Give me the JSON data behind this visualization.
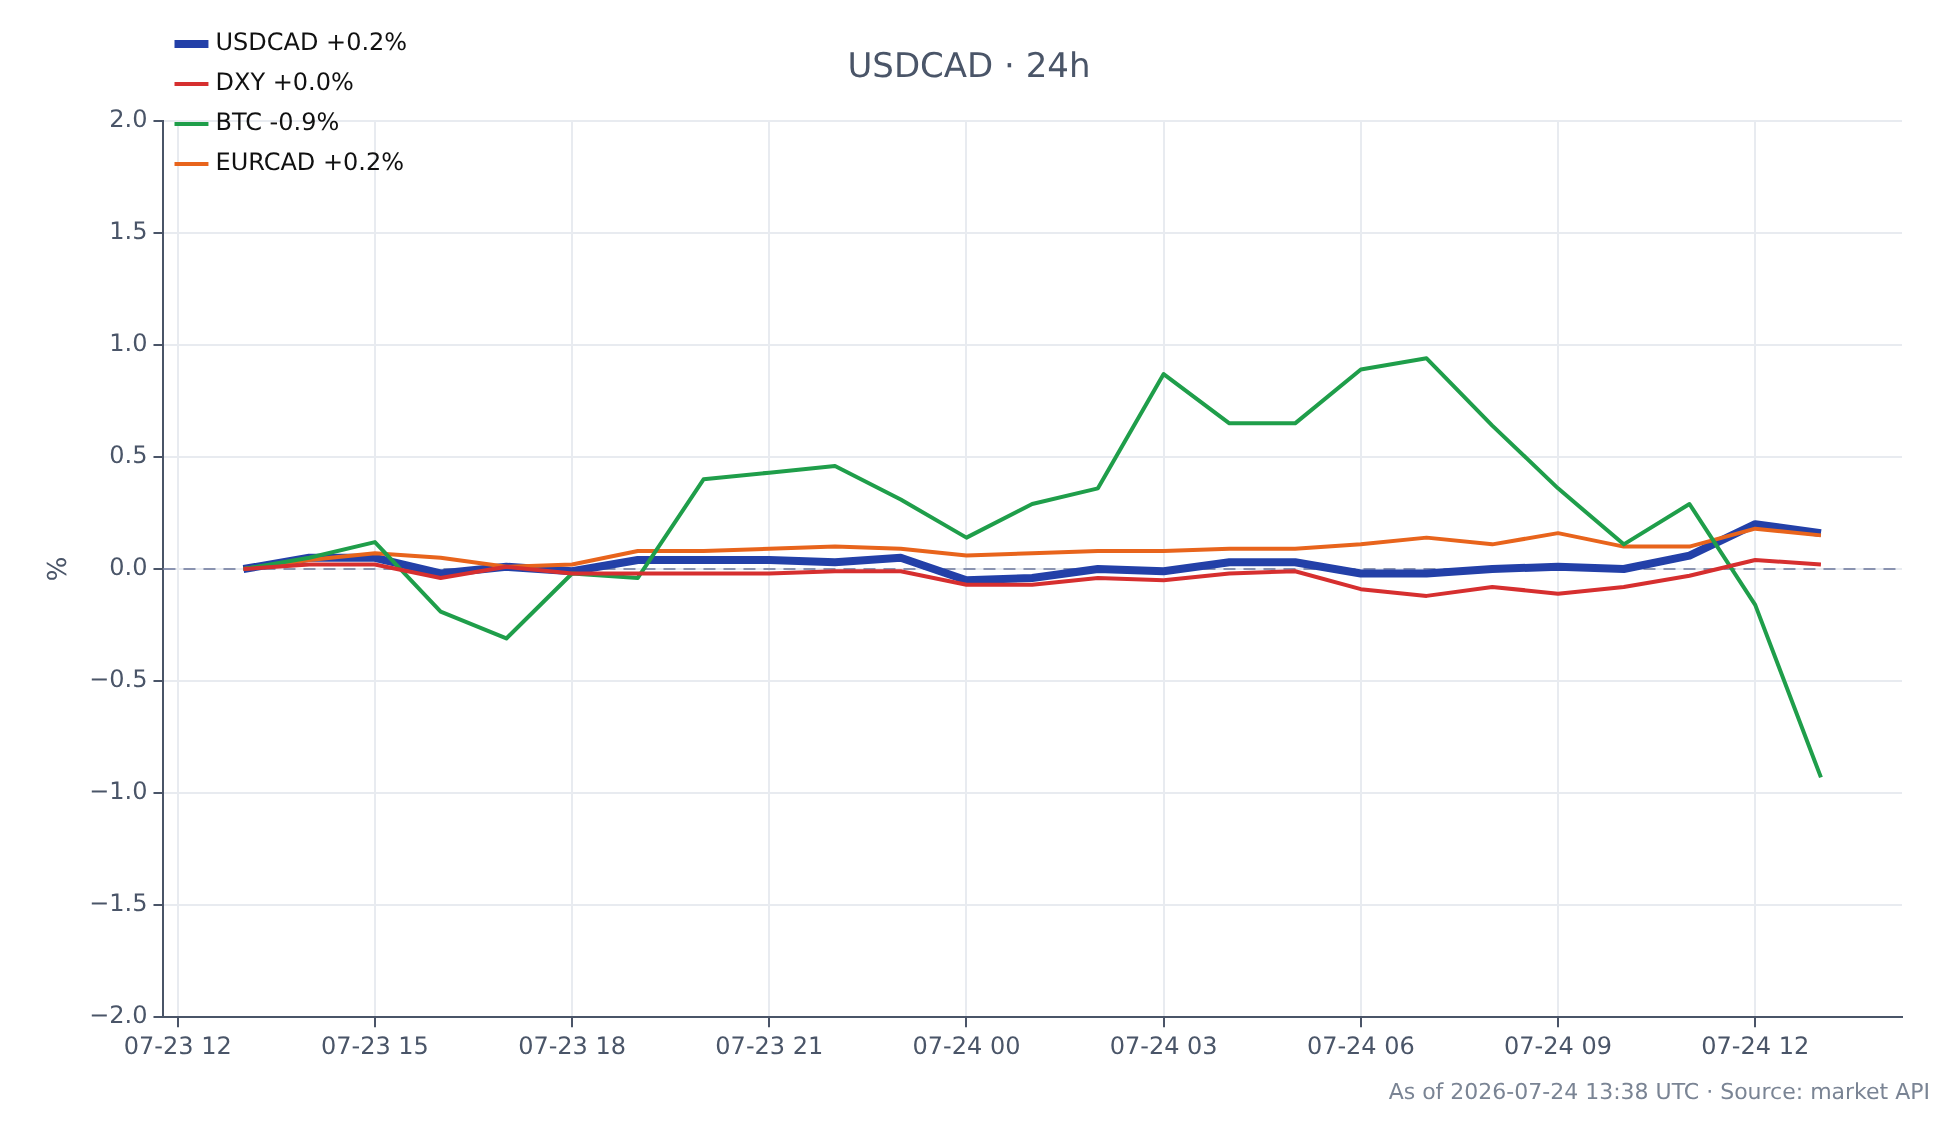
{
  "chart_data": {
    "type": "line",
    "title": "USDCAD · 24h",
    "ylabel": "%",
    "x": [
      "2026-07-23T13:00",
      "2026-07-23T14:00",
      "2026-07-23T15:00",
      "2026-07-23T16:00",
      "2026-07-23T17:00",
      "2026-07-23T18:00",
      "2026-07-23T19:00",
      "2026-07-23T20:00",
      "2026-07-23T21:00",
      "2026-07-23T22:00",
      "2026-07-23T23:00",
      "2026-07-24T00:00",
      "2026-07-24T01:00",
      "2026-07-24T02:00",
      "2026-07-24T03:00",
      "2026-07-24T04:00",
      "2026-07-24T05:00",
      "2026-07-24T06:00",
      "2026-07-24T07:00",
      "2026-07-24T08:00",
      "2026-07-24T09:00",
      "2026-07-24T10:00",
      "2026-07-24T11:00",
      "2026-07-24T12:00",
      "2026-07-24T13:00"
    ],
    "series": [
      {
        "name": "USDCAD +0.2%",
        "color": "#2340a8",
        "values": [
          0,
          0.05,
          0.05,
          -0.02,
          0.01,
          -0.01,
          0.04,
          0.04,
          0.04,
          0.03,
          0.05,
          -0.05,
          -0.04,
          0.0,
          -0.01,
          0.03,
          0.03,
          -0.02,
          -0.02,
          0.0,
          0.01,
          0.0,
          0.06,
          0.2,
          0.16
        ]
      },
      {
        "name": "DXY +0.0%",
        "color": "#d62f2f",
        "values": [
          0,
          0.02,
          0.02,
          -0.04,
          0.01,
          -0.02,
          -0.02,
          -0.02,
          -0.02,
          -0.01,
          -0.01,
          -0.07,
          -0.07,
          -0.04,
          -0.05,
          -0.02,
          -0.01,
          -0.09,
          -0.12,
          -0.08,
          -0.11,
          -0.08,
          -0.03,
          0.04,
          0.02
        ]
      },
      {
        "name": "BTC -0.9%",
        "color": "#1f9e4a",
        "values": [
          0,
          0.05,
          0.12,
          -0.19,
          -0.31,
          -0.02,
          -0.04,
          0.4,
          0.43,
          0.46,
          0.31,
          0.14,
          0.29,
          0.36,
          0.87,
          0.65,
          0.65,
          0.89,
          0.94,
          0.64,
          0.36,
          0.11,
          0.29,
          -0.16,
          -0.93
        ]
      },
      {
        "name": "EURCAD +0.2%",
        "color": "#e8641c",
        "values": [
          0,
          0.04,
          0.07,
          0.05,
          0.01,
          0.02,
          0.08,
          0.08,
          0.09,
          0.1,
          0.09,
          0.06,
          0.07,
          0.08,
          0.08,
          0.09,
          0.09,
          0.11,
          0.14,
          0.11,
          0.16,
          0.1,
          0.1,
          0.18,
          0.15
        ]
      }
    ],
    "xlim": [
      "2026-07-23T11:47",
      "2026-07-24T14:14"
    ],
    "xticks": [
      {
        "value": "2026-07-23T12:00",
        "label": "07-23 12"
      },
      {
        "value": "2026-07-23T15:00",
        "label": "07-23 15"
      },
      {
        "value": "2026-07-23T18:00",
        "label": "07-23 18"
      },
      {
        "value": "2026-07-23T21:00",
        "label": "07-23 21"
      },
      {
        "value": "2026-07-24T00:00",
        "label": "07-24 00"
      },
      {
        "value": "2026-07-24T03:00",
        "label": "07-24 03"
      },
      {
        "value": "2026-07-24T06:00",
        "label": "07-24 06"
      },
      {
        "value": "2026-07-24T09:00",
        "label": "07-24 09"
      },
      {
        "value": "2026-07-24T12:00",
        "label": "07-24 12"
      }
    ],
    "ylim": [
      -2,
      2
    ],
    "yticks": [
      {
        "value": -2,
        "label": "−2.0"
      },
      {
        "value": -1.5,
        "label": "−1.5"
      },
      {
        "value": -1,
        "label": "−1.0"
      },
      {
        "value": -0.5,
        "label": "−0.5"
      },
      {
        "value": 0,
        "label": "0.0"
      },
      {
        "value": 0.5,
        "label": "0.5"
      },
      {
        "value": 1,
        "label": "1.0"
      },
      {
        "value": 1.5,
        "label": "1.5"
      },
      {
        "value": 2,
        "label": "2.0"
      }
    ],
    "ref_lines": [
      {
        "axis": "y",
        "value": 0,
        "color": "#8a93b0",
        "line_style": "dashed"
      }
    ],
    "grid": true,
    "legend": "top left",
    "marker": "none",
    "line_style": "solid",
    "annotations": [
      "As of 2026-07-24 13:38 UTC · Source: market API"
    ]
  }
}
